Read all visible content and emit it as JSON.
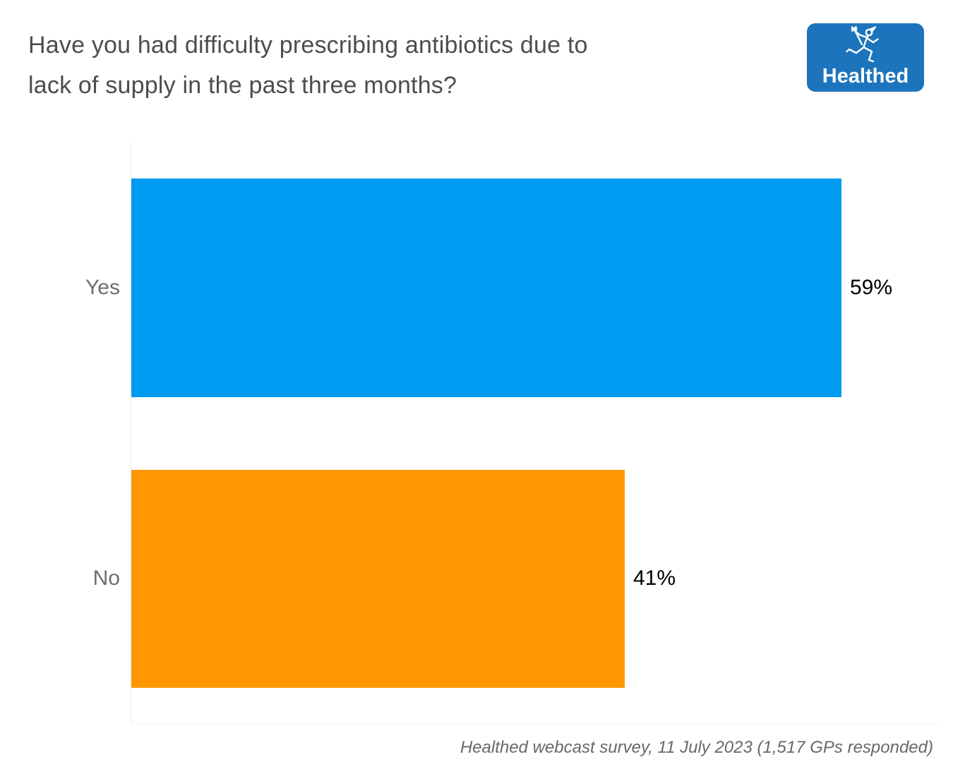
{
  "title": {
    "line1": "Have you had difficulty prescribing antibiotics due to",
    "line2": "lack of supply in the past three months?"
  },
  "logo": {
    "brand": "Healthed",
    "bg_color": "#1C75BC",
    "icon": "hermes-runner-icon"
  },
  "chart_data": {
    "type": "bar",
    "orientation": "horizontal",
    "title": "Have you had difficulty prescribing antibiotics due to lack of supply in the past three months?",
    "categories": [
      "Yes",
      "No"
    ],
    "values": [
      59,
      41
    ],
    "value_labels": [
      "59%",
      "41%"
    ],
    "unit": "%",
    "series_colors": [
      "#009AF0",
      "#FF9800"
    ],
    "category_label_color": "#6E6E6E",
    "value_label_color": "#000000",
    "axis": {
      "x_min": 0,
      "x_max": 59,
      "gridlines": false,
      "tick_labels_visible": false,
      "axis_line_color": "#E8E8E8"
    },
    "legend": "none"
  },
  "footer": {
    "source": "Healthed webcast survey, 11 July 2023 (1,517 GPs responded)"
  }
}
